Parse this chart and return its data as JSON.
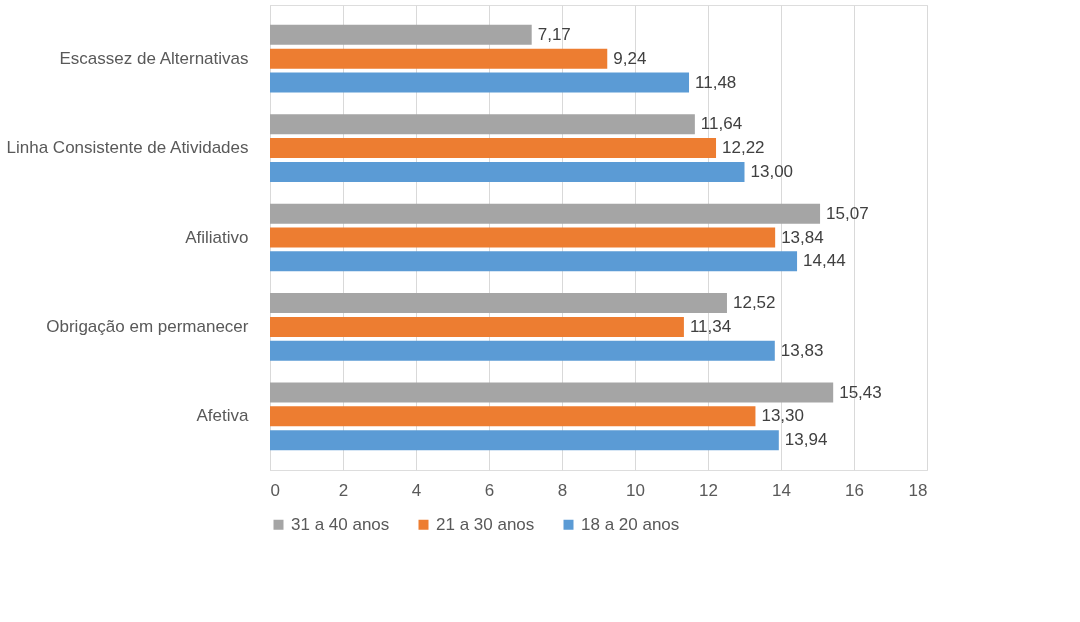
{
  "chart_data": {
    "type": "bar",
    "orientation": "horizontal",
    "categories": [
      "Escassez de Alternativas",
      "Linha Consistente de Atividades",
      "Afiliativo",
      "Obrigação em permanecer",
      "Afetiva"
    ],
    "series": [
      {
        "name": "31 a 40 anos",
        "color": "#a5a5a5",
        "values": [
          7.17,
          11.64,
          15.07,
          12.52,
          15.43
        ],
        "value_labels": [
          "7,17",
          "11,64",
          "15,07",
          "12,52",
          "15,43"
        ]
      },
      {
        "name": "21 a 30 anos",
        "color": "#ed7d31",
        "values": [
          9.24,
          12.22,
          13.84,
          11.34,
          13.3
        ],
        "value_labels": [
          "9,24",
          "12,22",
          "13,84",
          "11,34",
          "13,30"
        ]
      },
      {
        "name": "18 a 20 anos",
        "color": "#5b9bd5",
        "values": [
          11.48,
          13.0,
          14.44,
          13.83,
          13.94
        ],
        "value_labels": [
          "11,48",
          "13,00",
          "14,44",
          "13,83",
          "13,94"
        ]
      }
    ],
    "xlim": [
      0,
      18
    ],
    "xticks": [
      0,
      2,
      4,
      6,
      8,
      10,
      12,
      14,
      16,
      18
    ],
    "grid": "x",
    "legend": "bottom"
  }
}
